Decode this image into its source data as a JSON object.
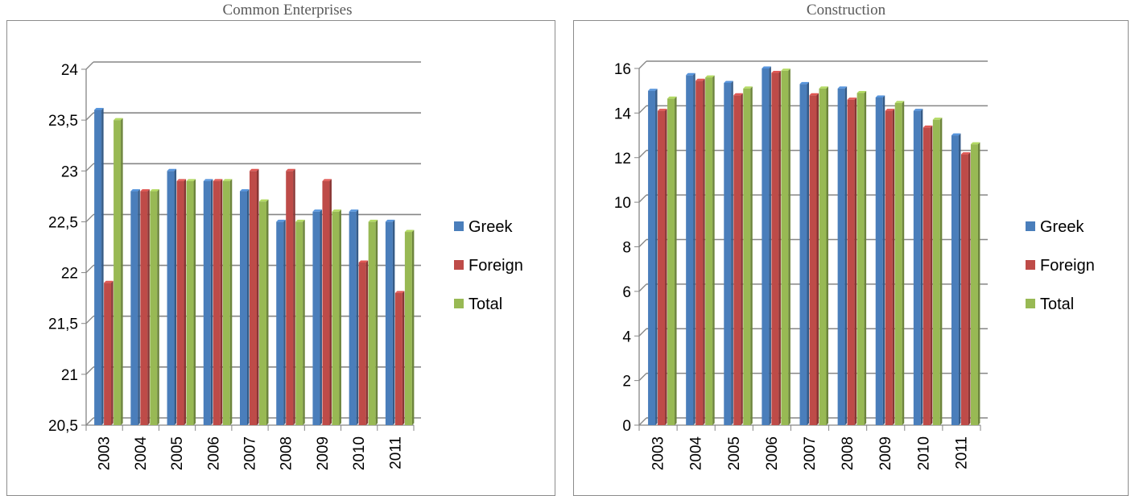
{
  "chart_data": [
    {
      "type": "bar",
      "title": "Common Enterprises",
      "categories": [
        "2003",
        "2004",
        "2005",
        "2006",
        "2007",
        "2008",
        "2009",
        "2010",
        "2011"
      ],
      "series": [
        {
          "name": "Greek",
          "color": "#4a7ebb",
          "values": [
            23.6,
            22.8,
            23.0,
            22.9,
            22.8,
            22.5,
            22.6,
            22.6,
            22.5
          ]
        },
        {
          "name": "Foreign",
          "color": "#be4b48",
          "values": [
            21.9,
            22.8,
            22.9,
            22.9,
            23.0,
            23.0,
            22.9,
            22.1,
            21.8
          ]
        },
        {
          "name": "Total",
          "color": "#98b954",
          "values": [
            23.5,
            22.8,
            22.9,
            22.9,
            22.7,
            22.5,
            22.6,
            22.5,
            22.4
          ]
        }
      ],
      "ylim": [
        20.5,
        24
      ],
      "yticks": [
        "20,5",
        "21",
        "21,5",
        "22",
        "22,5",
        "23",
        "23,5",
        "24"
      ],
      "grid": true,
      "legend_position": "right"
    },
    {
      "type": "bar",
      "title": "Construction",
      "categories": [
        "2003",
        "2004",
        "2005",
        "2006",
        "2007",
        "2008",
        "2009",
        "2010",
        "2011"
      ],
      "series": [
        {
          "name": "Greek",
          "color": "#4a7ebb",
          "values": [
            15.0,
            15.7,
            15.35,
            16.0,
            15.3,
            15.1,
            14.7,
            14.1,
            13.0
          ]
        },
        {
          "name": "Foreign",
          "color": "#be4b48",
          "values": [
            14.1,
            15.45,
            14.8,
            15.8,
            14.8,
            14.6,
            14.1,
            13.35,
            12.15
          ]
        },
        {
          "name": "Total",
          "color": "#98b954",
          "values": [
            14.65,
            15.6,
            15.1,
            15.9,
            15.1,
            14.9,
            14.45,
            13.7,
            12.6
          ]
        }
      ],
      "ylim": [
        0,
        16
      ],
      "yticks": [
        "0",
        "2",
        "4",
        "6",
        "8",
        "10",
        "12",
        "14",
        "16"
      ],
      "grid": true,
      "legend_position": "right"
    }
  ]
}
